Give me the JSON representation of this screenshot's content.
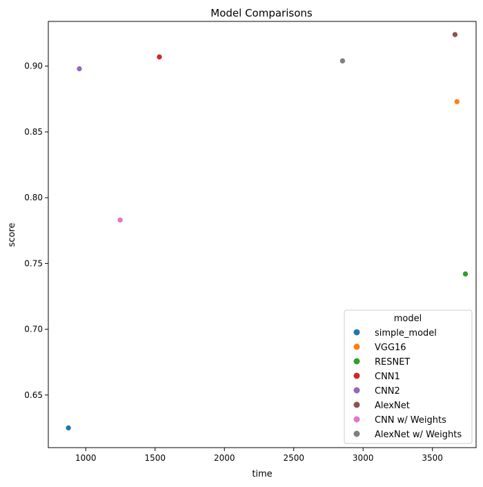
{
  "chart_data": {
    "type": "scatter",
    "title": "Model Comparisons",
    "xlabel": "time",
    "ylabel": "score",
    "xlim": [
      730,
      3815
    ],
    "ylim": [
      0.61,
      0.934
    ],
    "xticks": [
      1000,
      1500,
      2000,
      2500,
      3000,
      3500
    ],
    "yticks": [
      0.65,
      0.7,
      0.75,
      0.8,
      0.85,
      0.9
    ],
    "xtick_labels": [
      "1000",
      "1500",
      "2000",
      "2500",
      "3000",
      "3500"
    ],
    "ytick_labels": [
      "0.65",
      "0.70",
      "0.75",
      "0.80",
      "0.85",
      "0.90"
    ],
    "grid": false,
    "legend": {
      "title": "model",
      "placement": "lower right"
    },
    "series": [
      {
        "name": "simple_model",
        "color": "#1f77b4",
        "points": [
          {
            "x": 875,
            "y": 0.625
          }
        ]
      },
      {
        "name": "VGG16",
        "color": "#ff7f0e",
        "points": [
          {
            "x": 3677,
            "y": 0.873
          }
        ]
      },
      {
        "name": "RESNET",
        "color": "#2ca02c",
        "points": [
          {
            "x": 3738,
            "y": 0.742
          }
        ]
      },
      {
        "name": "CNN1",
        "color": "#d62728",
        "points": [
          {
            "x": 1531,
            "y": 0.907
          }
        ]
      },
      {
        "name": "CNN2",
        "color": "#9467bd",
        "points": [
          {
            "x": 954,
            "y": 0.898
          }
        ]
      },
      {
        "name": "AlexNet",
        "color": "#8c564b",
        "points": [
          {
            "x": 3663,
            "y": 0.924
          }
        ]
      },
      {
        "name": "CNN w/ Weights",
        "color": "#e377c2",
        "points": [
          {
            "x": 1248,
            "y": 0.783
          }
        ]
      },
      {
        "name": "AlexNet w/ Weights",
        "color": "#7f7f7f",
        "points": [
          {
            "x": 2852,
            "y": 0.904
          }
        ]
      }
    ]
  }
}
